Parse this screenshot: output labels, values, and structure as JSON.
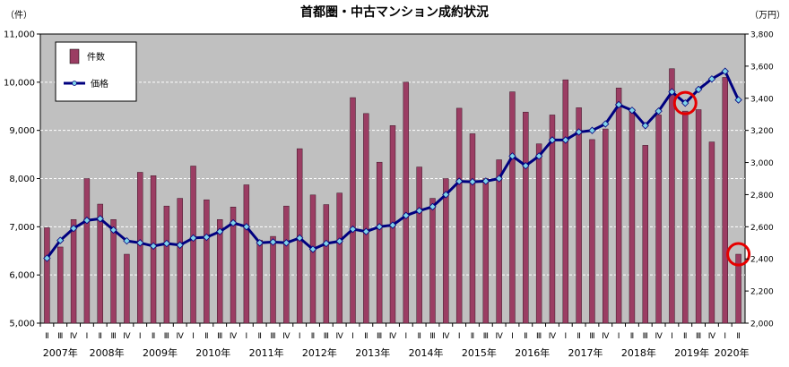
{
  "chart_data": {
    "type": "bar+line",
    "title": "首都圏・中古マンション成約状況",
    "y_left_unit": "（件）",
    "y_right_unit": "（万円）",
    "y_left_range": [
      5000,
      11000
    ],
    "y_left_ticks": [
      "5,000",
      "6,000",
      "7,000",
      "8,000",
      "9,000",
      "10,000",
      "11,000"
    ],
    "y_right_range": [
      2000,
      3800
    ],
    "y_right_ticks": [
      "2,000",
      "2,200",
      "2,400",
      "2,600",
      "2,800",
      "3,000",
      "3,200",
      "3,400",
      "3,600",
      "3,800"
    ],
    "grid": true,
    "legend": {
      "position": "top-left",
      "bar_label": "件数",
      "line_label": "価格"
    },
    "quarter_labels": [
      "Ⅱ",
      "Ⅲ",
      "Ⅳ",
      "Ⅰ",
      "Ⅱ",
      "Ⅲ",
      "Ⅳ",
      "Ⅰ",
      "Ⅱ",
      "Ⅲ",
      "Ⅳ",
      "Ⅰ",
      "Ⅱ",
      "Ⅲ",
      "Ⅳ",
      "Ⅰ",
      "Ⅱ",
      "Ⅲ",
      "Ⅳ",
      "Ⅰ",
      "Ⅱ",
      "Ⅲ",
      "Ⅳ",
      "Ⅰ",
      "Ⅱ",
      "Ⅲ",
      "Ⅳ",
      "Ⅰ",
      "Ⅱ",
      "Ⅲ",
      "Ⅳ",
      "Ⅰ",
      "Ⅱ",
      "Ⅲ",
      "Ⅳ",
      "Ⅰ",
      "Ⅱ",
      "Ⅲ",
      "Ⅳ",
      "Ⅰ",
      "Ⅱ",
      "Ⅲ",
      "Ⅳ",
      "Ⅰ",
      "Ⅱ",
      "Ⅲ",
      "Ⅳ",
      "Ⅰ",
      "Ⅱ",
      "Ⅲ",
      "Ⅳ",
      "Ⅰ",
      "Ⅱ"
    ],
    "years": [
      {
        "label": "2007年",
        "start": 0,
        "count": 3
      },
      {
        "label": "2008年",
        "start": 3,
        "count": 4
      },
      {
        "label": "2009年",
        "start": 7,
        "count": 4
      },
      {
        "label": "2010年",
        "start": 11,
        "count": 4
      },
      {
        "label": "2011年",
        "start": 15,
        "count": 4
      },
      {
        "label": "2012年",
        "start": 19,
        "count": 4
      },
      {
        "label": "2013年",
        "start": 23,
        "count": 4
      },
      {
        "label": "2014年",
        "start": 27,
        "count": 4
      },
      {
        "label": "2015年",
        "start": 31,
        "count": 4
      },
      {
        "label": "2016年",
        "start": 35,
        "count": 4
      },
      {
        "label": "2017年",
        "start": 39,
        "count": 4
      },
      {
        "label": "2018年",
        "start": 43,
        "count": 4
      },
      {
        "label": "2019年",
        "start": 47,
        "count": 4
      },
      {
        "label": "2020年",
        "start": 51,
        "count": 2
      }
    ],
    "series": [
      {
        "name": "件数",
        "type": "bar",
        "axis": "left",
        "color": "#9b3d63",
        "values": [
          6980,
          6580,
          7150,
          8000,
          7470,
          7150,
          6430,
          8130,
          8060,
          7430,
          7590,
          8260,
          7560,
          7150,
          7410,
          7870,
          6720,
          6800,
          7430,
          8620,
          7660,
          7460,
          7700,
          9680,
          9350,
          8340,
          9100,
          10000,
          8240,
          7590,
          8000,
          9460,
          8930,
          8000,
          8390,
          9800,
          9380,
          8720,
          9320,
          10050,
          9470,
          8810,
          9030,
          9880,
          9440,
          8690,
          9320,
          10280,
          9400,
          9430,
          8760,
          10100,
          6430
        ]
      },
      {
        "name": "価格",
        "type": "line",
        "axis": "right",
        "color": "#00007f",
        "marker_color": "#7fd3e8",
        "values": [
          2404,
          2515,
          2590,
          2640,
          2650,
          2580,
          2512,
          2500,
          2480,
          2496,
          2486,
          2530,
          2535,
          2570,
          2624,
          2600,
          2500,
          2505,
          2500,
          2530,
          2460,
          2496,
          2510,
          2585,
          2570,
          2600,
          2610,
          2670,
          2700,
          2725,
          2800,
          2883,
          2880,
          2884,
          2900,
          3040,
          2980,
          3040,
          3140,
          3140,
          3190,
          3200,
          3240,
          3360,
          3325,
          3230,
          3320,
          3440,
          3370,
          3455,
          3520,
          3568,
          3390
        ]
      }
    ],
    "highlights": [
      {
        "series": "価格",
        "index": 48,
        "color": "#e60000"
      },
      {
        "series": "件数",
        "index": 52,
        "color": "#e60000"
      }
    ]
  }
}
